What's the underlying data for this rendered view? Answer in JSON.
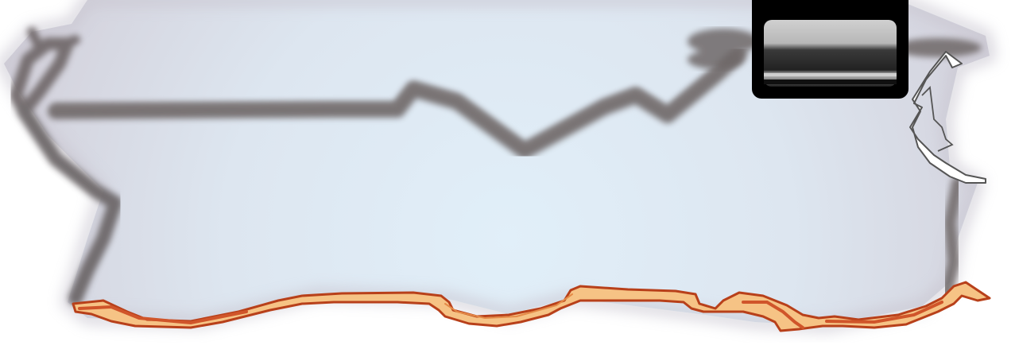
{
  "panel": {
    "kind": "game-ui-panel-frame",
    "colors": {
      "page_background": "#ffffff",
      "panel_fill_center": "#e0eef8",
      "panel_fill_edge": "#d5d3dc",
      "smudge_stroke": "#6f6869",
      "trim_fill": "#f7c383",
      "trim_stroke": "#b8401a",
      "cracked_edge": "#555555",
      "tab_outer": "#000000",
      "tab_inner_top": "#c9c9c9",
      "tab_inner_bottom": "#2b2b2b"
    },
    "icons": {
      "top_tab": "empty-slot-tab-icon",
      "right_edge": "torn-paper-edge-icon"
    },
    "text": []
  }
}
